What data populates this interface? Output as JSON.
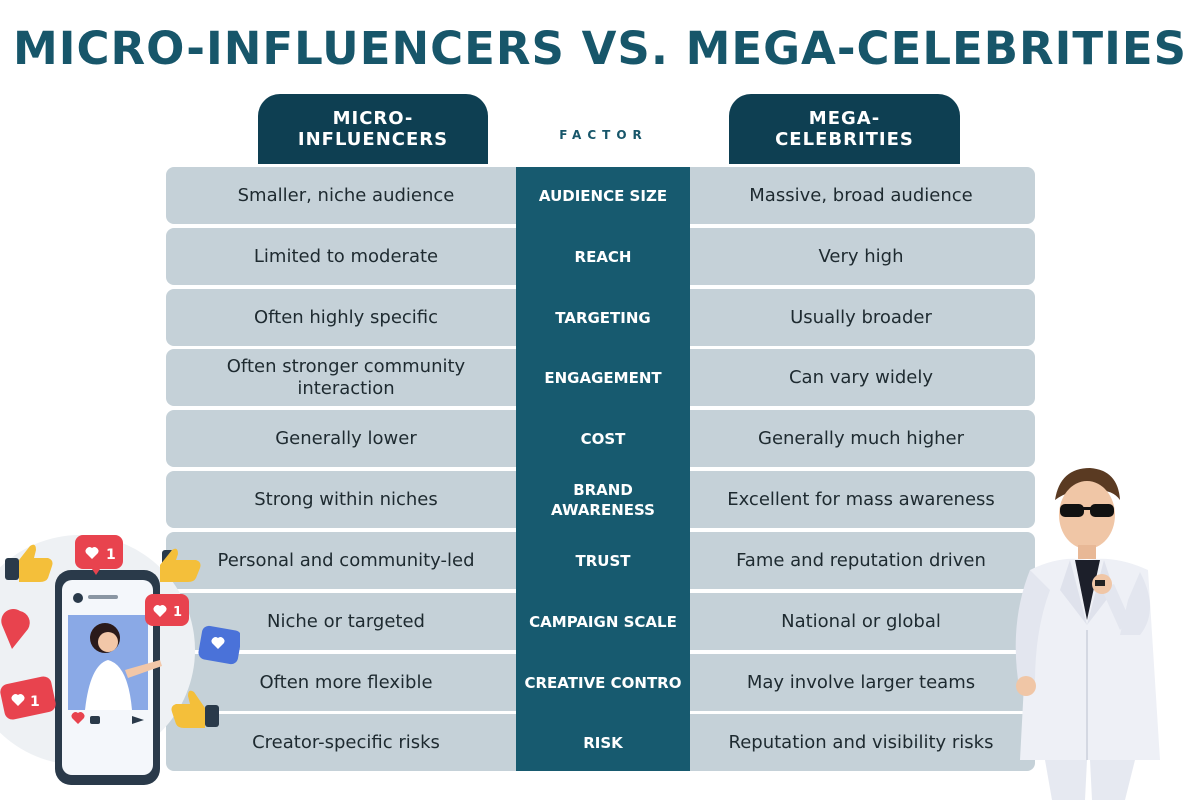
{
  "title": "MICRO-INFLUENCERS VS. MEGA-CELEBRITIES",
  "headers": {
    "left": "MICRO-\nINFLUENCERS",
    "factor": "FACTOR",
    "right": "MEGA-\nCELEBRITIES"
  },
  "rows": [
    {
      "left": "Smaller, niche audience",
      "factor": "AUDIENCE SIZE",
      "right": "Massive, broad audience"
    },
    {
      "left": "Limited to moderate",
      "factor": "REACH",
      "right": "Very high"
    },
    {
      "left": "Often highly specific",
      "factor": "TARGETING",
      "right": "Usually broader"
    },
    {
      "left": "Often stronger community interaction",
      "factor": "ENGAGEMENT",
      "right": "Can vary widely"
    },
    {
      "left": "Generally lower",
      "factor": "COST",
      "right": "Generally much higher"
    },
    {
      "left": "Strong within niches",
      "factor": "BRAND AWARENESS",
      "right": "Excellent for mass awareness"
    },
    {
      "left": "Personal and community-led",
      "factor": "TRUST",
      "right": "Fame and reputation driven"
    },
    {
      "left": "Niche or targeted",
      "factor": "CAMPAIGN SCALE",
      "right": "National or global"
    },
    {
      "left": "Often more flexible",
      "factor": "CREATIVE CONTRO",
      "right": "May involve larger teams"
    },
    {
      "left": "Creator-specific risks",
      "factor": "RISK",
      "right": "Reputation and visibility risks"
    }
  ],
  "badges": {
    "like_count": "1"
  },
  "colors": {
    "title": "#17566a",
    "header_bg": "#0e3f52",
    "factor_bg": "#175a6f",
    "row_bg": "#c5d1d8",
    "heart_red": "#e8434e"
  }
}
